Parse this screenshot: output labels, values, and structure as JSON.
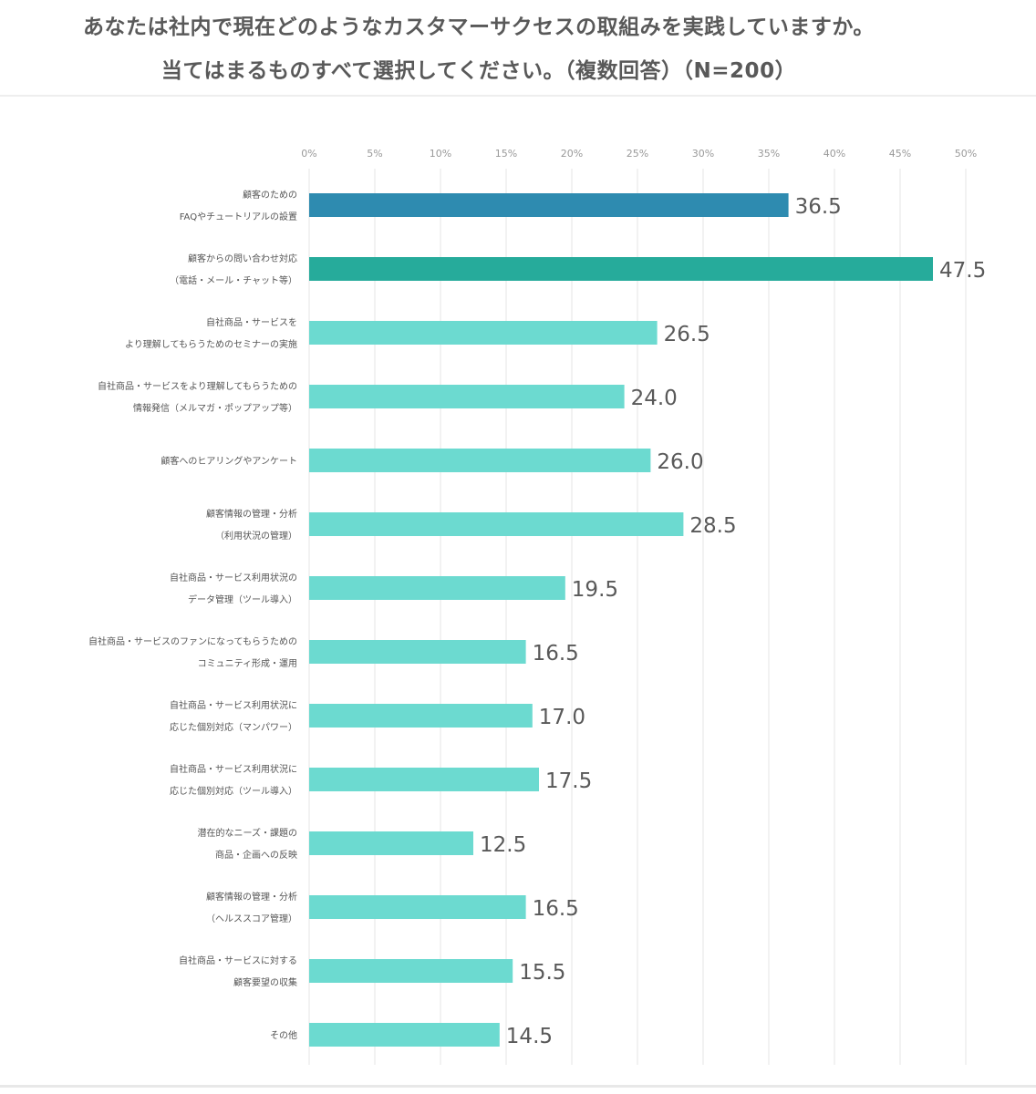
{
  "header": {
    "title_line1": "あなたは社内で現在どのようなカスタマーサクセスの取組みを実践していますか。",
    "title_line2": "当てはまるものすべて選択してください。（複数回答）（N=200）"
  },
  "chart_data": {
    "type": "bar",
    "orientation": "horizontal",
    "title": "あなたは社内で現在どのようなカスタマーサクセスの取組みを実践していますか。当てはまるものすべて選択してください。（複数回答）（N=200）",
    "xlim": [
      0,
      50
    ],
    "x_ticks": [
      "0%",
      "5%",
      "10%",
      "15%",
      "20%",
      "25%",
      "30%",
      "35%",
      "40%",
      "45%",
      "50%"
    ],
    "x_tick_values": [
      0,
      5,
      10,
      15,
      20,
      25,
      30,
      35,
      40,
      45,
      50
    ],
    "grid": true,
    "categories": [
      [
        "顧客のための",
        "FAQやチュートリアルの設置"
      ],
      [
        "顧客からの問い合わせ対応",
        "（電話・メール・チャット等）"
      ],
      [
        "自社商品・サービスを",
        "より理解してもらうためのセミナーの実施"
      ],
      [
        "自社商品・サービスをより理解してもらうための",
        "情報発信（メルマガ・ポップアップ等）"
      ],
      [
        "顧客へのヒアリングやアンケート"
      ],
      [
        "顧客情報の管理・分析",
        "（利用状況の管理）"
      ],
      [
        "自社商品・サービス利用状況の",
        "データ管理（ツール導入）"
      ],
      [
        "自社商品・サービスのファンになってもらうための",
        "コミュニティ形成・運用"
      ],
      [
        "自社商品・サービス利用状況に",
        "応じた個別対応（マンパワー）"
      ],
      [
        "自社商品・サービス利用状況に",
        "応じた個別対応（ツール導入）"
      ],
      [
        "潜在的なニーズ・課題の",
        "商品・企画への反映"
      ],
      [
        "顧客情報の管理・分析",
        "（ヘルススコア管理）"
      ],
      [
        "自社商品・サービスに対する",
        "顧客要望の収集"
      ],
      [
        "その他"
      ]
    ],
    "values": [
      36.5,
      47.5,
      26.5,
      24.0,
      26.0,
      28.5,
      19.5,
      16.5,
      17.0,
      17.5,
      12.5,
      16.5,
      15.5,
      14.5
    ],
    "value_labels": [
      "36.5",
      "47.5",
      "26.5",
      "24.0",
      "26.0",
      "28.5",
      "19.5",
      "16.5",
      "17.0",
      "17.5",
      "12.5",
      "16.5",
      "15.5",
      "14.5"
    ],
    "bar_colors": [
      "#2e8bb0",
      "#26ab9b",
      "#6cdad0",
      "#6cdad0",
      "#6cdad0",
      "#6cdad0",
      "#6cdad0",
      "#6cdad0",
      "#6cdad0",
      "#6cdad0",
      "#6cdad0",
      "#6cdad0",
      "#6cdad0",
      "#6cdad0"
    ],
    "grid_color": "#e6e6e6"
  }
}
